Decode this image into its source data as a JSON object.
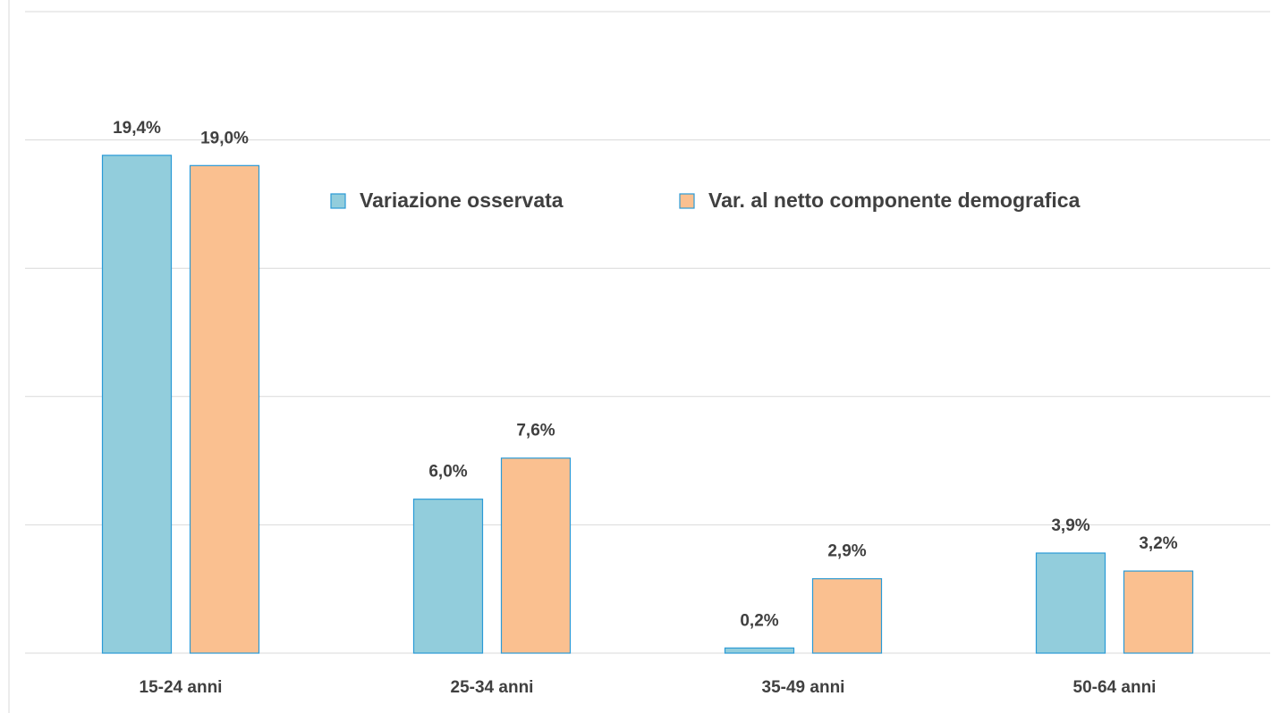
{
  "chart_data": {
    "type": "bar",
    "categories": [
      "15-24 anni",
      "25-34 anni",
      "35-49 anni",
      "50-64 anni"
    ],
    "series": [
      {
        "name": "Variazione osservata",
        "color": "#92cddc",
        "values": [
          19.4,
          6.0,
          0.2,
          3.9
        ],
        "value_labels": [
          "19,4%",
          "6,0%",
          "0,2%",
          "3,9%"
        ]
      },
      {
        "name": "Var. al netto componente demografica",
        "color": "#fac090",
        "values": [
          19.0,
          7.6,
          2.9,
          3.2
        ],
        "value_labels": [
          "19,0%",
          "7,6%",
          "2,9%",
          "3,2%"
        ]
      }
    ],
    "ylim": [
      0,
      25
    ],
    "yticks": [
      0,
      5,
      10,
      15,
      20,
      25
    ],
    "grid": true,
    "legend": "top"
  }
}
